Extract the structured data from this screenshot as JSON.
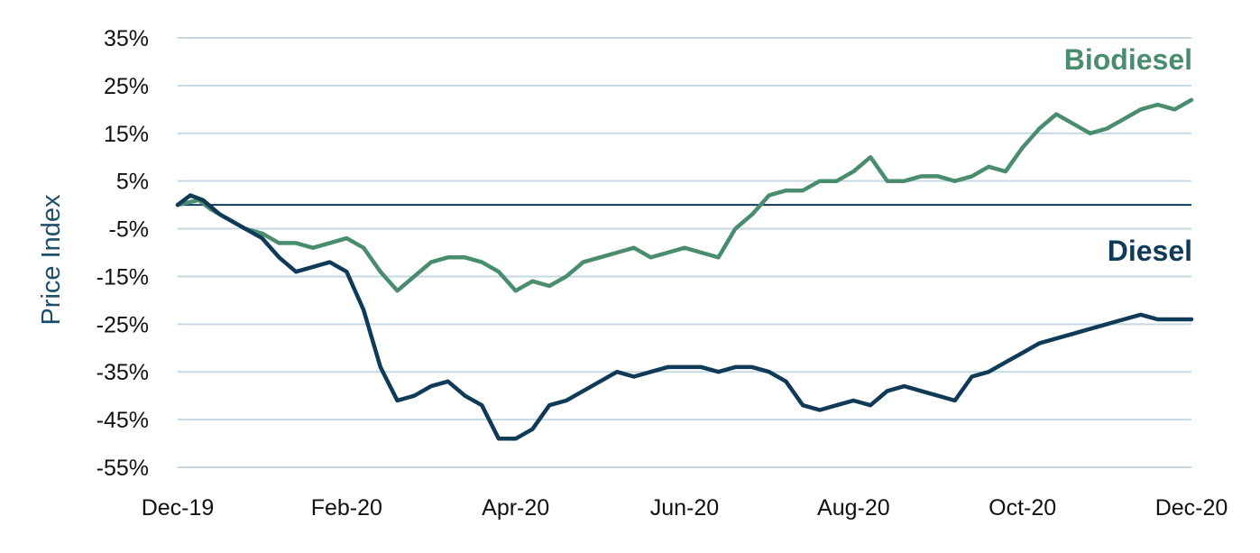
{
  "chart_data": {
    "type": "line",
    "title": "",
    "xlabel": "",
    "ylabel": "Price Index",
    "ylim": [
      -55,
      35
    ],
    "yticks": [
      "35%",
      "25%",
      "15%",
      "5%",
      "-5%",
      "-15%",
      "-25%",
      "-35%",
      "-45%",
      "-55%"
    ],
    "ytick_values": [
      35,
      25,
      15,
      5,
      -5,
      -15,
      -25,
      -35,
      -45,
      -55
    ],
    "xticks": [
      "Dec-19",
      "Feb-20",
      "Apr-20",
      "Jun-20",
      "Aug-20",
      "Oct-20",
      "Dec-20"
    ],
    "x_domain": [
      "Dec-19",
      "Dec-20"
    ],
    "zero_line": 0,
    "grid": true,
    "colors": {
      "Biodiesel": "#4a8c6e",
      "Diesel": "#0f3a58",
      "grid": "#c5d8e2",
      "zero": "#0f3a58"
    },
    "series": [
      {
        "name": "Biodiesel",
        "x_month": [
          0,
          0.25,
          0.4,
          0.6,
          0.8,
          1.0,
          1.2,
          1.4,
          1.6,
          1.8,
          2.0,
          2.2,
          2.4,
          2.6,
          2.8,
          3.0,
          3.2,
          3.4,
          3.6,
          3.8,
          4.0,
          4.2,
          4.4,
          4.6,
          4.8,
          5.0,
          5.2,
          5.4,
          5.6,
          5.8,
          6.0,
          6.2,
          6.4,
          6.6,
          6.8,
          7.0,
          7.2,
          7.4,
          7.6,
          7.8,
          8.0,
          8.2,
          8.4,
          8.6,
          8.8,
          9.0,
          9.2,
          9.4,
          9.6,
          9.8,
          10.0,
          10.2,
          10.4,
          10.6,
          10.8,
          11.0,
          11.2,
          11.4,
          11.6,
          11.8,
          12.0
        ],
        "values": [
          0,
          1,
          -1,
          -3,
          -5,
          -6,
          -8,
          -8,
          -9,
          -8,
          -7,
          -9,
          -14,
          -18,
          -15,
          -12,
          -11,
          -11,
          -12,
          -14,
          -18,
          -16,
          -17,
          -15,
          -12,
          -11,
          -10,
          -9,
          -11,
          -10,
          -9,
          -10,
          -11,
          -5,
          -2,
          2,
          3,
          3,
          5,
          5,
          7,
          10,
          5,
          5,
          6,
          6,
          5,
          6,
          8,
          7,
          12,
          16,
          19,
          17,
          15,
          16,
          18,
          20,
          21,
          20,
          22
        ]
      },
      {
        "name": "Diesel",
        "x_month": [
          0,
          0.15,
          0.3,
          0.5,
          0.7,
          1.0,
          1.2,
          1.4,
          1.6,
          1.8,
          2.0,
          2.2,
          2.4,
          2.6,
          2.8,
          3.0,
          3.2,
          3.4,
          3.6,
          3.8,
          4.0,
          4.2,
          4.4,
          4.6,
          4.8,
          5.0,
          5.2,
          5.4,
          5.6,
          5.8,
          6.0,
          6.2,
          6.4,
          6.6,
          6.8,
          7.0,
          7.2,
          7.4,
          7.6,
          7.8,
          8.0,
          8.2,
          8.4,
          8.6,
          8.8,
          9.0,
          9.2,
          9.4,
          9.6,
          9.8,
          10.0,
          10.2,
          10.4,
          10.6,
          10.8,
          11.0,
          11.2,
          11.4,
          11.6,
          11.8,
          12.0
        ],
        "values": [
          0,
          2,
          1,
          -2,
          -4,
          -7,
          -11,
          -14,
          -13,
          -12,
          -14,
          -22,
          -34,
          -41,
          -40,
          -38,
          -37,
          -40,
          -42,
          -49,
          -49,
          -47,
          -42,
          -41,
          -39,
          -37,
          -35,
          -36,
          -35,
          -34,
          -34,
          -34,
          -35,
          -34,
          -34,
          -35,
          -37,
          -42,
          -43,
          -42,
          -41,
          -42,
          -39,
          -38,
          -39,
          -40,
          -41,
          -36,
          -35,
          -33,
          -31,
          -29,
          -28,
          -27,
          -26,
          -25,
          -24,
          -23,
          -24,
          -24,
          -24
        ]
      }
    ]
  }
}
